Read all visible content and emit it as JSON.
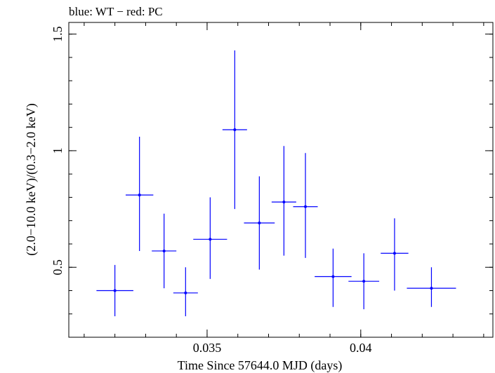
{
  "chart_data": {
    "type": "scatter",
    "title": "blue: WT − red: PC",
    "xlabel": "Time Since 57644.0 MJD (days)",
    "ylabel": "(2.0−10.0 keV)/(0.3−2.0 keV)",
    "xlim": [
      0.0305,
      0.0443
    ],
    "ylim": [
      0.2,
      1.55
    ],
    "x_ticks": [
      {
        "value": 0.035,
        "label": "0.035"
      },
      {
        "value": 0.04,
        "label": "0.04"
      }
    ],
    "y_ticks": [
      {
        "value": 0.5,
        "label": "0.5"
      },
      {
        "value": 1.0,
        "label": "1"
      },
      {
        "value": 1.5,
        "label": "1.5"
      }
    ],
    "grid": false,
    "series": [
      {
        "color": "#0000ff",
        "points": [
          {
            "x": 0.032,
            "xerr": 0.0006,
            "y": 0.4,
            "ylo": 0.29,
            "yhi": 0.51
          },
          {
            "x": 0.0328,
            "xerr": 0.00045,
            "y": 0.81,
            "ylo": 0.57,
            "yhi": 1.06
          },
          {
            "x": 0.0336,
            "xerr": 0.0004,
            "y": 0.57,
            "ylo": 0.41,
            "yhi": 0.73
          },
          {
            "x": 0.0343,
            "xerr": 0.0004,
            "y": 0.39,
            "ylo": 0.29,
            "yhi": 0.5
          },
          {
            "x": 0.0351,
            "xerr": 0.00055,
            "y": 0.62,
            "ylo": 0.45,
            "yhi": 0.8
          },
          {
            "x": 0.0359,
            "xerr": 0.0004,
            "y": 1.09,
            "ylo": 0.75,
            "yhi": 1.43
          },
          {
            "x": 0.0367,
            "xerr": 0.0005,
            "y": 0.69,
            "ylo": 0.49,
            "yhi": 0.89
          },
          {
            "x": 0.0375,
            "xerr": 0.0004,
            "y": 0.78,
            "ylo": 0.55,
            "yhi": 1.02
          },
          {
            "x": 0.0382,
            "xerr": 0.0004,
            "y": 0.76,
            "ylo": 0.54,
            "yhi": 0.99
          },
          {
            "x": 0.0391,
            "xerr": 0.0006,
            "y": 0.46,
            "ylo": 0.33,
            "yhi": 0.58
          },
          {
            "x": 0.0401,
            "xerr": 0.0005,
            "y": 0.44,
            "ylo": 0.32,
            "yhi": 0.56
          },
          {
            "x": 0.0411,
            "xerr": 0.00045,
            "y": 0.56,
            "ylo": 0.4,
            "yhi": 0.71
          },
          {
            "x": 0.0423,
            "xerr": 0.0008,
            "y": 0.41,
            "ylo": 0.33,
            "yhi": 0.5
          }
        ]
      }
    ]
  }
}
